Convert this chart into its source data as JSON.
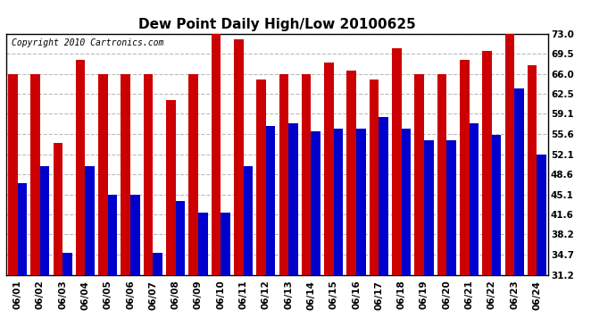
{
  "title": "Dew Point Daily High/Low 20100625",
  "copyright": "Copyright 2010 Cartronics.com",
  "dates": [
    "06/01",
    "06/02",
    "06/03",
    "06/04",
    "06/05",
    "06/06",
    "06/07",
    "06/08",
    "06/09",
    "06/10",
    "06/11",
    "06/12",
    "06/13",
    "06/14",
    "06/15",
    "06/16",
    "06/17",
    "06/18",
    "06/19",
    "06/20",
    "06/21",
    "06/22",
    "06/23",
    "06/24"
  ],
  "highs": [
    66.0,
    66.0,
    54.0,
    68.5,
    66.0,
    66.0,
    66.0,
    61.5,
    66.0,
    73.0,
    72.0,
    65.0,
    66.0,
    66.0,
    68.0,
    66.5,
    65.0,
    70.5,
    66.0,
    66.0,
    68.5,
    70.0,
    73.0,
    67.5
  ],
  "lows": [
    47.0,
    50.0,
    35.0,
    50.0,
    45.0,
    45.0,
    35.0,
    44.0,
    42.0,
    42.0,
    50.0,
    57.0,
    57.5,
    56.0,
    56.5,
    56.5,
    58.5,
    56.5,
    54.5,
    54.5,
    57.5,
    55.5,
    63.5,
    52.0
  ],
  "yticks": [
    31.2,
    34.7,
    38.2,
    41.6,
    45.1,
    48.6,
    52.1,
    55.6,
    59.1,
    62.5,
    66.0,
    69.5,
    73.0
  ],
  "ymin": 31.2,
  "ymax": 73.0,
  "bar_width": 0.42,
  "high_color": "#cc0000",
  "low_color": "#0000cc",
  "bg_color": "#ffffff",
  "grid_color": "#bbbbbb",
  "title_fontsize": 11,
  "tick_fontsize": 7.5,
  "copyright_fontsize": 7
}
